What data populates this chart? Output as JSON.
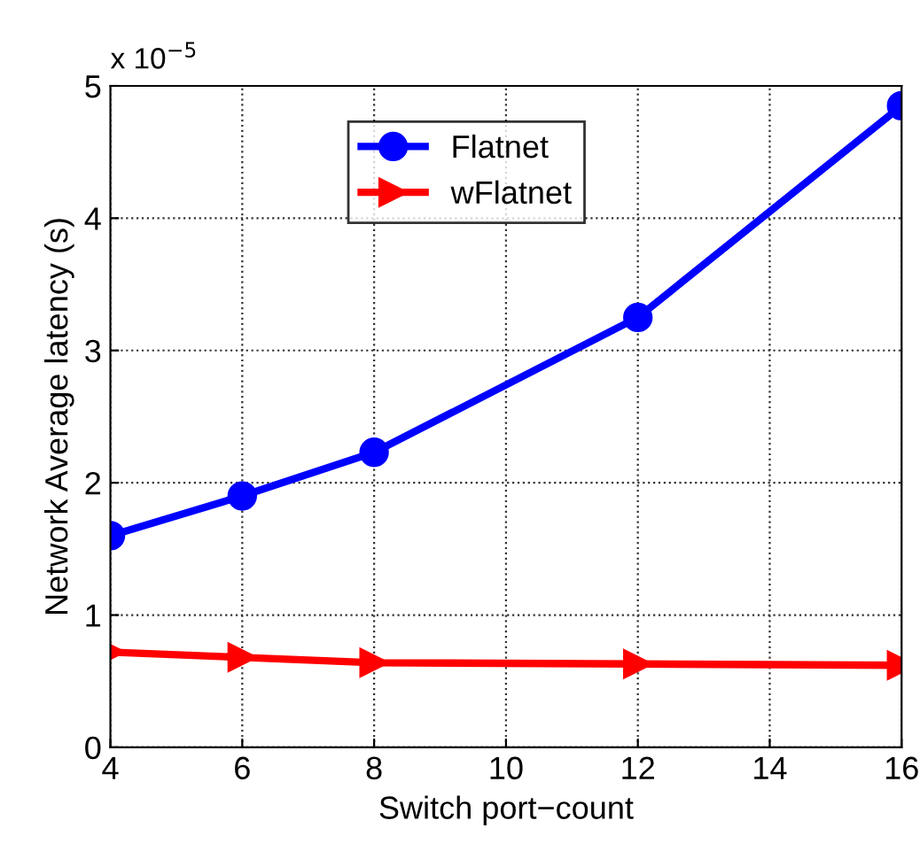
{
  "chart_data": {
    "type": "line",
    "xlabel": "Switch port−count",
    "ylabel": "Network Average latency (s)",
    "annotations": [
      "x 10$^{−5}$"
    ],
    "x": [
      4,
      6,
      8,
      12,
      16
    ],
    "series": [
      {
        "name": "Flatnet",
        "color": "#0000ff",
        "marker": "circle",
        "values": [
          1.6,
          1.9,
          2.23,
          3.25,
          4.85
        ]
      },
      {
        "name": "wFlatnet",
        "color": "#ff0000",
        "marker": "triangle",
        "values": [
          0.72,
          0.68,
          0.64,
          0.63,
          0.62
        ]
      }
    ],
    "xlim": [
      4,
      16
    ],
    "xticks": [
      4,
      6,
      8,
      10,
      12,
      14,
      16
    ],
    "ylim": [
      0,
      5
    ],
    "yticks": [
      0,
      1,
      2,
      3,
      4,
      5
    ],
    "grid": true,
    "legend": "top",
    "line_style": "solid"
  }
}
